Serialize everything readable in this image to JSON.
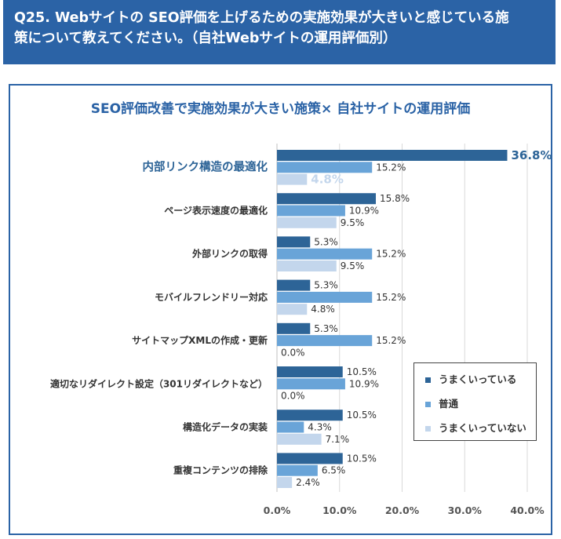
{
  "header": {
    "line1": "Q25. Webサイトの SEO評価を上げるための実施効果が大きいと感じている施",
    "line2": "策について教えてください。（自社Webサイトの運用評価別）"
  },
  "chart_data": {
    "type": "bar",
    "orientation": "horizontal",
    "title": "SEO評価改善で実施効果が大きい施策× 自社サイトの運用評価",
    "categories": [
      "内部リンク構造の最適化",
      "ページ表示速度の最適化",
      "外部リンクの取得",
      "モバイルフレンドリー対応",
      "サイトマップXMLの作成・更新",
      "適切なリダイレクト設定（301リダイレクトなど）",
      "構造化データの実装",
      "重複コンテンツの排除"
    ],
    "series": [
      {
        "name": "うまくいっている",
        "color": "#2d6497",
        "values": [
          36.8,
          15.8,
          5.3,
          5.3,
          5.3,
          10.5,
          10.5,
          10.5
        ]
      },
      {
        "name": "普通",
        "color": "#69a4d8",
        "values": [
          15.2,
          10.9,
          15.2,
          15.2,
          15.2,
          10.9,
          4.3,
          6.5
        ]
      },
      {
        "name": "うまくいっていない",
        "color": "#c3d6ec",
        "values": [
          4.8,
          9.5,
          9.5,
          4.8,
          0.0,
          0.0,
          7.1,
          2.4
        ]
      }
    ],
    "xlim": [
      0,
      40
    ],
    "xticks": [
      "0.0%",
      "10.0%",
      "20.0%",
      "30.0%",
      "40.0%"
    ],
    "grid": true,
    "legend_position": "right",
    "highlight_category": "内部リンク構造の最適化",
    "highlight_color": "#2d6497"
  }
}
